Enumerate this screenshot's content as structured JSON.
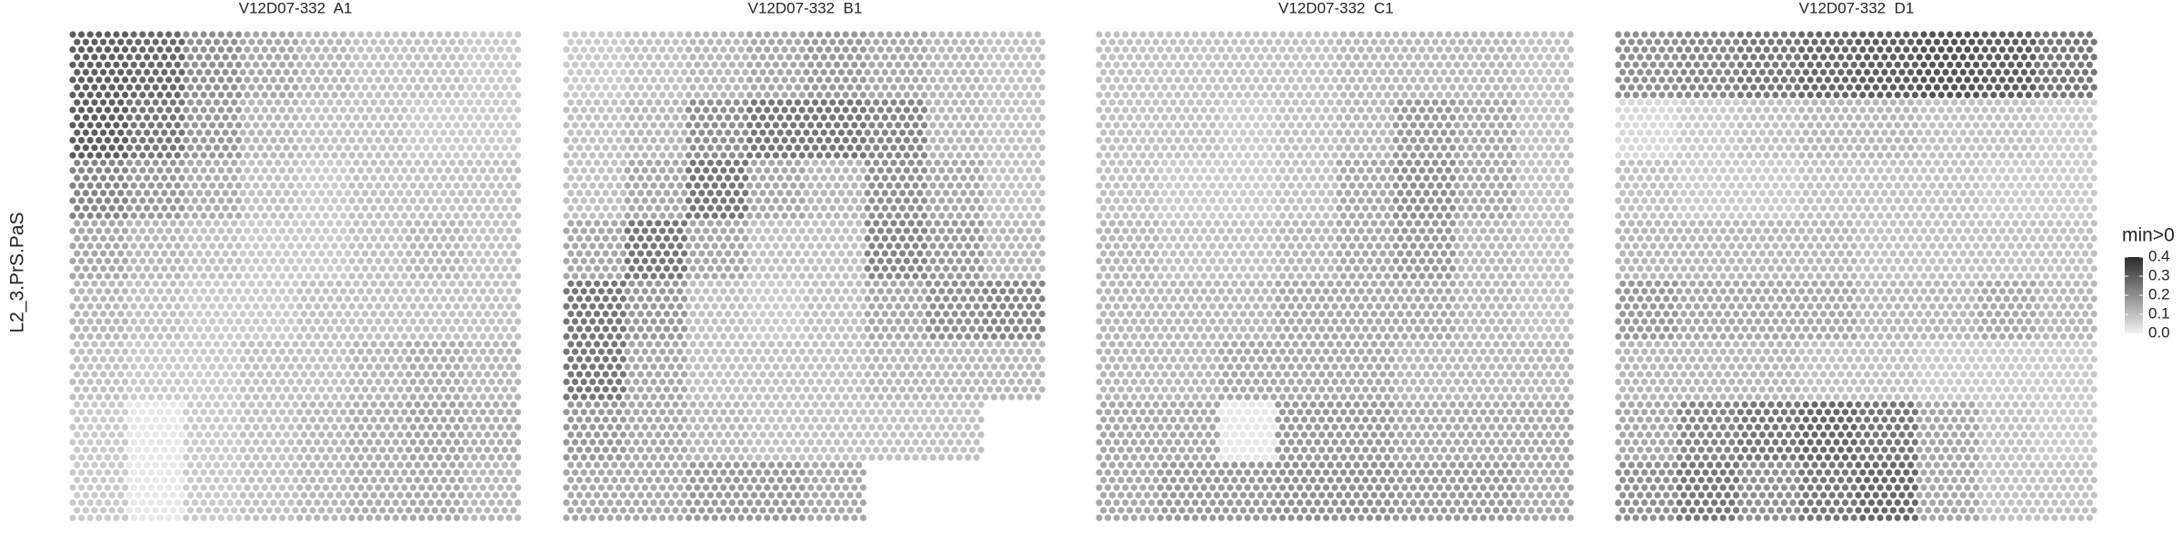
{
  "chart_data": {
    "type": "spatial",
    "ylabel": "L2_3.PrS.PaS",
    "legend_title": "min>0",
    "clim": [
      0,
      0.4
    ],
    "cticks": [
      {
        "value": 0,
        "label": "0.0"
      },
      0.1,
      0.2,
      0.3,
      0.4
    ],
    "low_color": "#f2f2f2",
    "high_color": "#2b2b2b",
    "panels": [
      {
        "title": "V12D07-332  A1",
        "values": [
          [
            0.3,
            0.28,
            0.2,
            0.15,
            0.12,
            0.1,
            0.1,
            0.08
          ],
          [
            0.3,
            0.25,
            0.18,
            0.12,
            0.1,
            0.1,
            0.08,
            0.08
          ],
          [
            0.22,
            0.18,
            0.14,
            0.1,
            0.08,
            0.1,
            0.1,
            0.1
          ],
          [
            0.15,
            0.12,
            0.1,
            0.08,
            0.08,
            0.1,
            0.12,
            0.1
          ],
          [
            0.12,
            0.1,
            0.08,
            0.08,
            0.1,
            0.1,
            0.1,
            0.1
          ],
          [
            0.1,
            0.08,
            0.08,
            0.1,
            0.1,
            0.12,
            0.14,
            0.12
          ],
          [
            0.08,
            0.02,
            0.08,
            0.1,
            0.12,
            0.14,
            0.16,
            0.14
          ],
          [
            0.08,
            0.02,
            0.08,
            0.1,
            0.12,
            0.14,
            0.15,
            0.12
          ]
        ]
      },
      {
        "title": "V12D07-332  B1",
        "values": [
          [
            0.08,
            0.1,
            0.12,
            0.15,
            0.18,
            0.15,
            0.12,
            0.1
          ],
          [
            0.1,
            0.12,
            0.2,
            0.25,
            0.25,
            0.22,
            0.12,
            0.1
          ],
          [
            0.1,
            0.15,
            0.25,
            0.15,
            0.12,
            0.2,
            0.15,
            0.1
          ],
          [
            0.15,
            0.25,
            0.15,
            0.1,
            0.1,
            0.22,
            0.18,
            0.12
          ],
          [
            0.25,
            0.18,
            0.1,
            0.08,
            0.1,
            0.15,
            0.2,
            0.22
          ],
          [
            0.25,
            0.15,
            0.1,
            0.1,
            0.1,
            0.12,
            0.12,
            0.12
          ],
          [
            0.18,
            0.15,
            0.12,
            0.1,
            0.1,
            0.1,
            0.1,
            null
          ],
          [
            0.15,
            0.15,
            0.18,
            0.18,
            0.15,
            null,
            null,
            null
          ]
        ]
      },
      {
        "title": "V12D07-332  C1",
        "values": [
          [
            0.1,
            0.1,
            0.1,
            0.1,
            0.12,
            0.12,
            0.12,
            0.1
          ],
          [
            0.1,
            0.1,
            0.08,
            0.1,
            0.12,
            0.18,
            0.15,
            0.1
          ],
          [
            0.1,
            0.08,
            0.08,
            0.1,
            0.15,
            0.2,
            0.15,
            0.1
          ],
          [
            0.12,
            0.1,
            0.1,
            0.12,
            0.15,
            0.18,
            0.12,
            0.1
          ],
          [
            0.12,
            0.12,
            0.12,
            0.15,
            0.15,
            0.15,
            0.12,
            0.1
          ],
          [
            0.12,
            0.12,
            0.15,
            0.15,
            0.15,
            0.12,
            0.12,
            0.12
          ],
          [
            0.15,
            0.15,
            0.02,
            0.18,
            0.18,
            0.15,
            0.15,
            0.15
          ],
          [
            0.15,
            0.18,
            0.18,
            0.2,
            0.2,
            0.18,
            0.18,
            0.15
          ]
        ]
      },
      {
        "title": "V12D07-332  D1",
        "values": [
          [
            0.2,
            0.22,
            0.25,
            0.28,
            0.3,
            0.32,
            0.3,
            0.25
          ],
          [
            0.05,
            0.08,
            0.1,
            0.12,
            0.12,
            0.1,
            0.1,
            0.08
          ],
          [
            0.1,
            0.08,
            0.08,
            0.1,
            0.1,
            0.1,
            0.08,
            0.08
          ],
          [
            0.12,
            0.12,
            0.12,
            0.12,
            0.1,
            0.1,
            0.1,
            0.1
          ],
          [
            0.18,
            0.15,
            0.15,
            0.15,
            0.12,
            0.12,
            0.15,
            0.12
          ],
          [
            0.12,
            0.12,
            0.12,
            0.1,
            0.1,
            0.08,
            0.08,
            0.08
          ],
          [
            0.15,
            0.22,
            0.25,
            0.28,
            0.25,
            0.15,
            0.1,
            0.08
          ],
          [
            0.2,
            0.25,
            0.2,
            0.25,
            0.28,
            0.15,
            0.1,
            0.1
          ]
        ]
      }
    ]
  }
}
